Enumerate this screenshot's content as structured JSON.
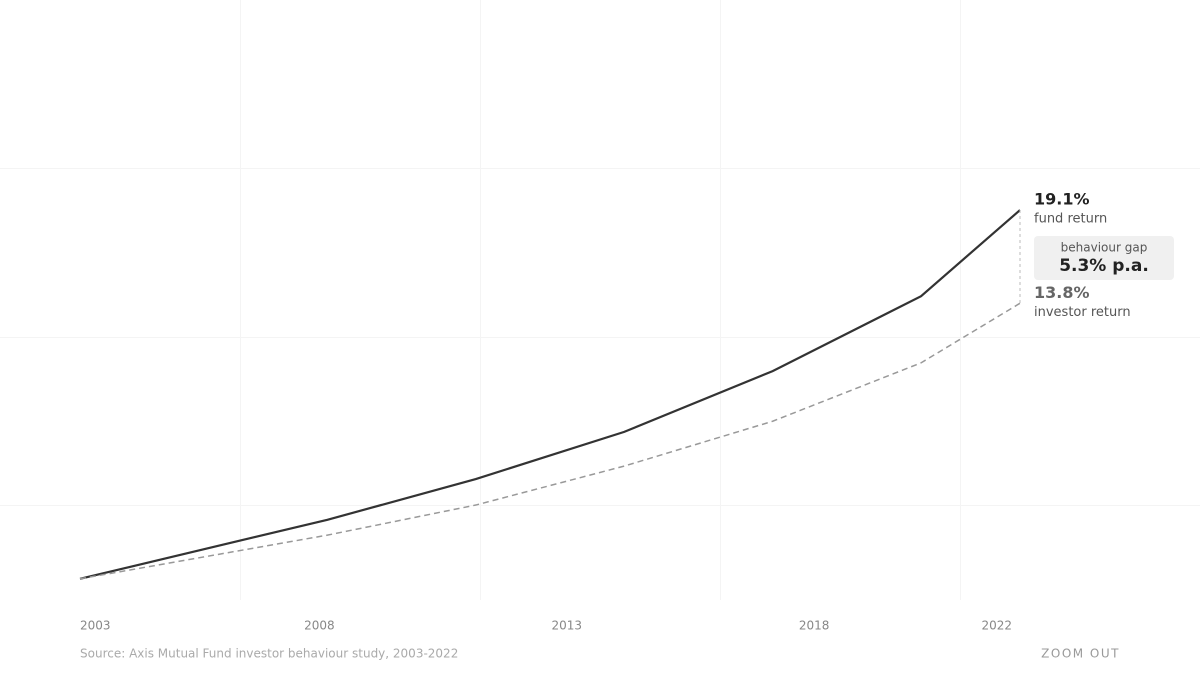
{
  "chart_data": {
    "type": "line",
    "x": [
      2003,
      2008,
      2011,
      2014,
      2017,
      2020,
      2022
    ],
    "xlim": [
      2003,
      2022
    ],
    "xticks": [
      2003,
      2008,
      2013,
      2018,
      2022
    ],
    "ylim": [
      0,
      100
    ],
    "series": [
      {
        "name": "fund return",
        "color": "#333333",
        "dash": "solid",
        "end_label": "19.1%",
        "values": [
          1.9,
          11.9,
          18.8,
          26.8,
          37.1,
          49.8,
          64.4
        ]
      },
      {
        "name": "investor return",
        "color": "#999999",
        "dash": "dashed",
        "end_label": "13.8%",
        "values": [
          1.9,
          9.3,
          14.4,
          21.0,
          28.6,
          38.5,
          48.6
        ]
      }
    ],
    "gap": {
      "title": "behaviour gap",
      "value": "5.3% p.a."
    },
    "source": "Source: Axis Mutual Fund investor behaviour study, 2003-2022",
    "button": "ZOOM OUT"
  }
}
